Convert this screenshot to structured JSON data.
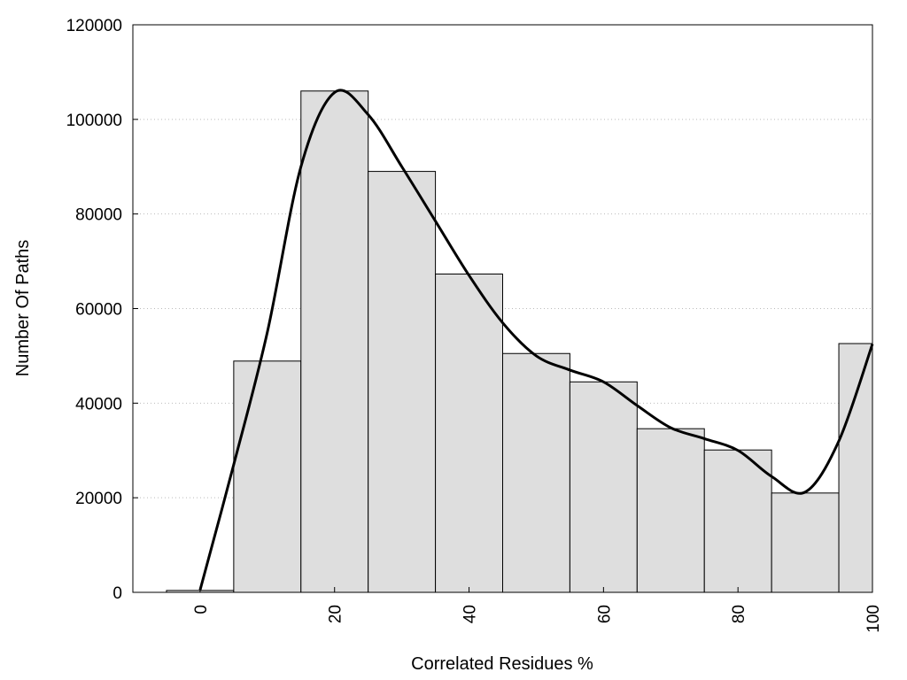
{
  "chart_data": {
    "type": "bar",
    "title": "",
    "xlabel": "Correlated Residues %",
    "ylabel": "Number Of Paths",
    "xlim": [
      -10,
      100
    ],
    "ylim": [
      0,
      120000
    ],
    "grid": "horizontal dotted",
    "legend": "none",
    "bin_width": 10,
    "x": [
      0,
      10,
      20,
      30,
      40,
      50,
      60,
      70,
      80,
      90,
      100
    ],
    "values": [
      400,
      48900,
      106000,
      89000,
      67300,
      50500,
      44500,
      34600,
      30100,
      21000,
      52600
    ],
    "bar_color": "#dedede",
    "xticks": [
      "0",
      "20",
      "40",
      "60",
      "80",
      "100"
    ],
    "xtick_values": [
      0,
      20,
      40,
      60,
      80,
      100
    ],
    "yticks": [
      "0",
      "20000",
      "40000",
      "60000",
      "80000",
      "100000",
      "120000"
    ],
    "ytick_values": [
      0,
      20000,
      40000,
      60000,
      80000,
      100000,
      120000
    ],
    "smooth_curve": {
      "x": [
        0,
        5,
        10,
        15,
        20,
        25,
        30,
        35,
        40,
        45,
        50,
        55,
        60,
        65,
        70,
        75,
        80,
        85,
        90,
        95,
        100
      ],
      "y": [
        500,
        27000,
        55000,
        90000,
        105700,
        101000,
        90000,
        78500,
        67000,
        57000,
        50000,
        47000,
        44500,
        39500,
        34800,
        32500,
        30000,
        24500,
        21200,
        32000,
        52500
      ]
    }
  }
}
